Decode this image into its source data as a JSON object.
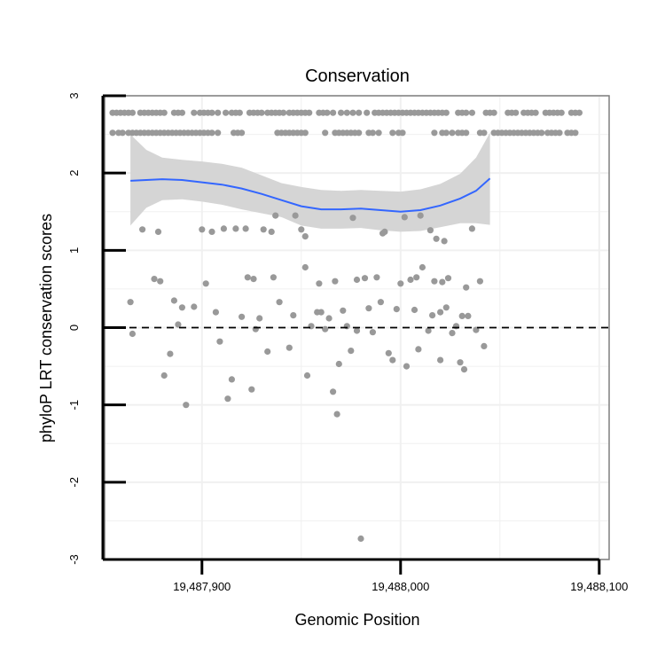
{
  "chart_data": {
    "type": "scatter",
    "title": "Conservation",
    "xlabel": "Genomic Position",
    "ylabel": "phyloP LRT conservation scores",
    "xlim": [
      19487851,
      19488105
    ],
    "ylim": [
      -3,
      3
    ],
    "x_ticks": [
      19487900,
      19488000,
      19488100
    ],
    "x_tick_labels": [
      "19,487,900",
      "19,488,000",
      "19,488,100"
    ],
    "y_ticks": [
      -3,
      -2,
      -1,
      0,
      1,
      2,
      3
    ],
    "y_tick_labels": [
      "-3",
      "-2",
      "-1",
      "0",
      "1",
      "2",
      "3"
    ],
    "reference_line": {
      "y": 0,
      "style": "dashed",
      "color": "#000000"
    },
    "grid": true,
    "colors": {
      "points": "#999999",
      "smooth_line": "#3366ff",
      "confidence_band": "#d3d3d3",
      "grid": "#f0f0f0",
      "panel_border": "#7f7f7f"
    },
    "points": [
      [
        19487855,
        2.78
      ],
      [
        19487857,
        2.78
      ],
      [
        19487859,
        2.78
      ],
      [
        19487861,
        2.78
      ],
      [
        19487863,
        2.78
      ],
      [
        19487865,
        2.78
      ],
      [
        19487869,
        2.78
      ],
      [
        19487871,
        2.78
      ],
      [
        19487873,
        2.78
      ],
      [
        19487875,
        2.78
      ],
      [
        19487877,
        2.78
      ],
      [
        19487879,
        2.78
      ],
      [
        19487881,
        2.78
      ],
      [
        19487886,
        2.78
      ],
      [
        19487888,
        2.78
      ],
      [
        19487890,
        2.78
      ],
      [
        19487896,
        2.78
      ],
      [
        19487899,
        2.78
      ],
      [
        19487901,
        2.78
      ],
      [
        19487903,
        2.78
      ],
      [
        19487905,
        2.78
      ],
      [
        19487908,
        2.78
      ],
      [
        19487912,
        2.78
      ],
      [
        19487915,
        2.78
      ],
      [
        19487917,
        2.78
      ],
      [
        19487919,
        2.78
      ],
      [
        19487924,
        2.78
      ],
      [
        19487926,
        2.78
      ],
      [
        19487928,
        2.78
      ],
      [
        19487930,
        2.78
      ],
      [
        19487933,
        2.78
      ],
      [
        19487935,
        2.78
      ],
      [
        19487937,
        2.78
      ],
      [
        19487939,
        2.78
      ],
      [
        19487941,
        2.78
      ],
      [
        19487944,
        2.78
      ],
      [
        19487946,
        2.78
      ],
      [
        19487948,
        2.78
      ],
      [
        19487950,
        2.78
      ],
      [
        19487952,
        2.78
      ],
      [
        19487954,
        2.78
      ],
      [
        19487959,
        2.78
      ],
      [
        19487961,
        2.78
      ],
      [
        19487963,
        2.78
      ],
      [
        19487966,
        2.78
      ],
      [
        19487970,
        2.78
      ],
      [
        19487973,
        2.78
      ],
      [
        19487976,
        2.78
      ],
      [
        19487979,
        2.78
      ],
      [
        19487983,
        2.78
      ],
      [
        19487987,
        2.78
      ],
      [
        19487989,
        2.78
      ],
      [
        19487991,
        2.78
      ],
      [
        19487993,
        2.78
      ],
      [
        19487995,
        2.78
      ],
      [
        19487997,
        2.78
      ],
      [
        19487999,
        2.78
      ],
      [
        19488001,
        2.78
      ],
      [
        19488003,
        2.78
      ],
      [
        19488005,
        2.78
      ],
      [
        19488007,
        2.78
      ],
      [
        19488009,
        2.78
      ],
      [
        19488011,
        2.78
      ],
      [
        19488013,
        2.78
      ],
      [
        19488015,
        2.78
      ],
      [
        19488017,
        2.78
      ],
      [
        19488019,
        2.78
      ],
      [
        19488021,
        2.78
      ],
      [
        19488023,
        2.78
      ],
      [
        19488029,
        2.78
      ],
      [
        19488031,
        2.78
      ],
      [
        19488033,
        2.78
      ],
      [
        19488036,
        2.78
      ],
      [
        19488043,
        2.78
      ],
      [
        19488045,
        2.78
      ],
      [
        19488047,
        2.78
      ],
      [
        19488054,
        2.78
      ],
      [
        19488056,
        2.78
      ],
      [
        19488058,
        2.78
      ],
      [
        19488062,
        2.78
      ],
      [
        19488064,
        2.78
      ],
      [
        19488066,
        2.78
      ],
      [
        19488068,
        2.78
      ],
      [
        19488073,
        2.78
      ],
      [
        19488075,
        2.78
      ],
      [
        19488077,
        2.78
      ],
      [
        19488079,
        2.78
      ],
      [
        19488081,
        2.78
      ],
      [
        19488086,
        2.78
      ],
      [
        19488088,
        2.78
      ],
      [
        19488090,
        2.78
      ],
      [
        19487855,
        2.52
      ],
      [
        19487858,
        2.52
      ],
      [
        19487860,
        2.52
      ],
      [
        19487863,
        2.52
      ],
      [
        19487865,
        2.52
      ],
      [
        19487867,
        2.52
      ],
      [
        19487869,
        2.52
      ],
      [
        19487871,
        2.52
      ],
      [
        19487873,
        2.52
      ],
      [
        19487875,
        2.52
      ],
      [
        19487877,
        2.52
      ],
      [
        19487879,
        2.52
      ],
      [
        19487881,
        2.52
      ],
      [
        19487883,
        2.52
      ],
      [
        19487885,
        2.52
      ],
      [
        19487887,
        2.52
      ],
      [
        19487889,
        2.52
      ],
      [
        19487891,
        2.52
      ],
      [
        19487893,
        2.52
      ],
      [
        19487895,
        2.52
      ],
      [
        19487897,
        2.52
      ],
      [
        19487899,
        2.52
      ],
      [
        19487901,
        2.52
      ],
      [
        19487903,
        2.52
      ],
      [
        19487905,
        2.52
      ],
      [
        19487908,
        2.52
      ],
      [
        19487916,
        2.52
      ],
      [
        19487918,
        2.52
      ],
      [
        19487920,
        2.52
      ],
      [
        19487938,
        2.52
      ],
      [
        19487940,
        2.52
      ],
      [
        19487942,
        2.52
      ],
      [
        19487944,
        2.52
      ],
      [
        19487946,
        2.52
      ],
      [
        19487948,
        2.52
      ],
      [
        19487950,
        2.52
      ],
      [
        19487952,
        2.52
      ],
      [
        19487962,
        2.52
      ],
      [
        19487967,
        2.52
      ],
      [
        19487969,
        2.52
      ],
      [
        19487971,
        2.52
      ],
      [
        19487973,
        2.52
      ],
      [
        19487975,
        2.52
      ],
      [
        19487977,
        2.52
      ],
      [
        19487979,
        2.52
      ],
      [
        19487984,
        2.52
      ],
      [
        19487986,
        2.52
      ],
      [
        19487989,
        2.52
      ],
      [
        19487996,
        2.52
      ],
      [
        19487999,
        2.52
      ],
      [
        19488001,
        2.52
      ],
      [
        19488017,
        2.52
      ],
      [
        19488021,
        2.52
      ],
      [
        19488023,
        2.52
      ],
      [
        19488026,
        2.52
      ],
      [
        19488029,
        2.52
      ],
      [
        19488031,
        2.52
      ],
      [
        19488033,
        2.52
      ],
      [
        19488040,
        2.52
      ],
      [
        19488042,
        2.52
      ],
      [
        19488047,
        2.52
      ],
      [
        19488049,
        2.52
      ],
      [
        19488051,
        2.52
      ],
      [
        19488053,
        2.52
      ],
      [
        19488055,
        2.52
      ],
      [
        19488057,
        2.52
      ],
      [
        19488059,
        2.52
      ],
      [
        19488061,
        2.52
      ],
      [
        19488063,
        2.52
      ],
      [
        19488065,
        2.52
      ],
      [
        19488067,
        2.52
      ],
      [
        19488069,
        2.52
      ],
      [
        19488071,
        2.52
      ],
      [
        19488074,
        2.52
      ],
      [
        19488076,
        2.52
      ],
      [
        19488078,
        2.52
      ],
      [
        19488080,
        2.52
      ],
      [
        19488084,
        2.52
      ],
      [
        19488086,
        2.52
      ],
      [
        19488088,
        2.52
      ],
      [
        19487864,
        0.33
      ],
      [
        19487865,
        -0.08
      ],
      [
        19487870,
        1.27
      ],
      [
        19487876,
        0.63
      ],
      [
        19487878,
        1.24
      ],
      [
        19487879,
        0.6
      ],
      [
        19487881,
        -0.62
      ],
      [
        19487884,
        -0.34
      ],
      [
        19487886,
        0.35
      ],
      [
        19487888,
        0.04
      ],
      [
        19487890,
        0.26
      ],
      [
        19487892,
        -1.0
      ],
      [
        19487896,
        0.27
      ],
      [
        19487900,
        1.27
      ],
      [
        19487902,
        0.57
      ],
      [
        19487905,
        1.24
      ],
      [
        19487907,
        0.2
      ],
      [
        19487909,
        -0.18
      ],
      [
        19487911,
        1.28
      ],
      [
        19487913,
        -0.92
      ],
      [
        19487915,
        -0.67
      ],
      [
        19487917,
        1.28
      ],
      [
        19487920,
        0.14
      ],
      [
        19487922,
        1.28
      ],
      [
        19487923,
        0.65
      ],
      [
        19487925,
        -0.8
      ],
      [
        19487926,
        0.63
      ],
      [
        19487927,
        -0.02
      ],
      [
        19487929,
        0.12
      ],
      [
        19487931,
        1.27
      ],
      [
        19487933,
        -0.31
      ],
      [
        19487935,
        1.24
      ],
      [
        19487936,
        0.65
      ],
      [
        19487937,
        1.45
      ],
      [
        19487939,
        0.33
      ],
      [
        19487944,
        -0.26
      ],
      [
        19487946,
        0.16
      ],
      [
        19487947,
        1.45
      ],
      [
        19487950,
        1.27
      ],
      [
        19487952,
        0.78
      ],
      [
        19487952,
        1.18
      ],
      [
        19487953,
        -0.62
      ],
      [
        19487955,
        0.02
      ],
      [
        19487958,
        0.2
      ],
      [
        19487959,
        0.57
      ],
      [
        19487960,
        0.2
      ],
      [
        19487962,
        -0.02
      ],
      [
        19487964,
        0.12
      ],
      [
        19487966,
        -0.83
      ],
      [
        19487967,
        0.6
      ],
      [
        19487968,
        -1.12
      ],
      [
        19487969,
        -0.47
      ],
      [
        19487971,
        0.22
      ],
      [
        19487973,
        0.02
      ],
      [
        19487975,
        -0.3
      ],
      [
        19487976,
        1.42
      ],
      [
        19487978,
        -0.04
      ],
      [
        19487978,
        0.62
      ],
      [
        19487980,
        -2.73
      ],
      [
        19487982,
        0.64
      ],
      [
        19487984,
        0.25
      ],
      [
        19487986,
        -0.06
      ],
      [
        19487988,
        0.65
      ],
      [
        19487990,
        0.33
      ],
      [
        19487991,
        1.22
      ],
      [
        19487992,
        1.24
      ],
      [
        19487994,
        -0.33
      ],
      [
        19487996,
        -0.42
      ],
      [
        19487998,
        0.24
      ],
      [
        19488000,
        0.57
      ],
      [
        19488002,
        1.43
      ],
      [
        19488003,
        -0.5
      ],
      [
        19488005,
        0.62
      ],
      [
        19488007,
        0.23
      ],
      [
        19488008,
        0.65
      ],
      [
        19488009,
        -0.28
      ],
      [
        19488010,
        1.45
      ],
      [
        19488011,
        0.78
      ],
      [
        19488014,
        -0.04
      ],
      [
        19488015,
        1.26
      ],
      [
        19488016,
        0.16
      ],
      [
        19488017,
        0.6
      ],
      [
        19488018,
        1.15
      ],
      [
        19488020,
        0.2
      ],
      [
        19488020,
        -0.42
      ],
      [
        19488021,
        0.59
      ],
      [
        19488022,
        1.12
      ],
      [
        19488023,
        0.26
      ],
      [
        19488024,
        0.64
      ],
      [
        19488026,
        -0.07
      ],
      [
        19488028,
        0.02
      ],
      [
        19488030,
        -0.45
      ],
      [
        19488031,
        0.15
      ],
      [
        19488032,
        -0.54
      ],
      [
        19488033,
        0.52
      ],
      [
        19488034,
        0.15
      ],
      [
        19488036,
        1.28
      ],
      [
        19488038,
        -0.03
      ],
      [
        19488040,
        0.6
      ],
      [
        19488042,
        -0.24
      ]
    ],
    "smooth_line": [
      [
        19487864,
        1.9
      ],
      [
        19487872,
        1.91
      ],
      [
        19487880,
        1.92
      ],
      [
        19487890,
        1.91
      ],
      [
        19487900,
        1.88
      ],
      [
        19487910,
        1.85
      ],
      [
        19487920,
        1.8
      ],
      [
        19487930,
        1.73
      ],
      [
        19487940,
        1.65
      ],
      [
        19487950,
        1.57
      ],
      [
        19487960,
        1.53
      ],
      [
        19487970,
        1.53
      ],
      [
        19487980,
        1.54
      ],
      [
        19487990,
        1.52
      ],
      [
        19488000,
        1.5
      ],
      [
        19488010,
        1.52
      ],
      [
        19488020,
        1.58
      ],
      [
        19488030,
        1.67
      ],
      [
        19488038,
        1.77
      ],
      [
        19488045,
        1.93
      ]
    ],
    "confidence_band": {
      "upper": [
        [
          19487864,
          2.5
        ],
        [
          19487872,
          2.3
        ],
        [
          19487880,
          2.2
        ],
        [
          19487890,
          2.17
        ],
        [
          19487900,
          2.15
        ],
        [
          19487910,
          2.12
        ],
        [
          19487920,
          2.07
        ],
        [
          19487930,
          1.97
        ],
        [
          19487940,
          1.87
        ],
        [
          19487950,
          1.82
        ],
        [
          19487960,
          1.78
        ],
        [
          19487970,
          1.77
        ],
        [
          19487980,
          1.78
        ],
        [
          19487990,
          1.77
        ],
        [
          19488000,
          1.76
        ],
        [
          19488010,
          1.79
        ],
        [
          19488020,
          1.86
        ],
        [
          19488030,
          1.99
        ],
        [
          19488038,
          2.2
        ],
        [
          19488045,
          2.52
        ]
      ],
      "lower": [
        [
          19487864,
          1.32
        ],
        [
          19487872,
          1.55
        ],
        [
          19487880,
          1.65
        ],
        [
          19487890,
          1.66
        ],
        [
          19487900,
          1.63
        ],
        [
          19487910,
          1.59
        ],
        [
          19487920,
          1.53
        ],
        [
          19487930,
          1.48
        ],
        [
          19487940,
          1.43
        ],
        [
          19487950,
          1.32
        ],
        [
          19487960,
          1.28
        ],
        [
          19487970,
          1.28
        ],
        [
          19487980,
          1.29
        ],
        [
          19487990,
          1.26
        ],
        [
          19488000,
          1.24
        ],
        [
          19488010,
          1.25
        ],
        [
          19488020,
          1.3
        ],
        [
          19488030,
          1.35
        ],
        [
          19488038,
          1.35
        ],
        [
          19488045,
          1.33
        ]
      ]
    }
  }
}
